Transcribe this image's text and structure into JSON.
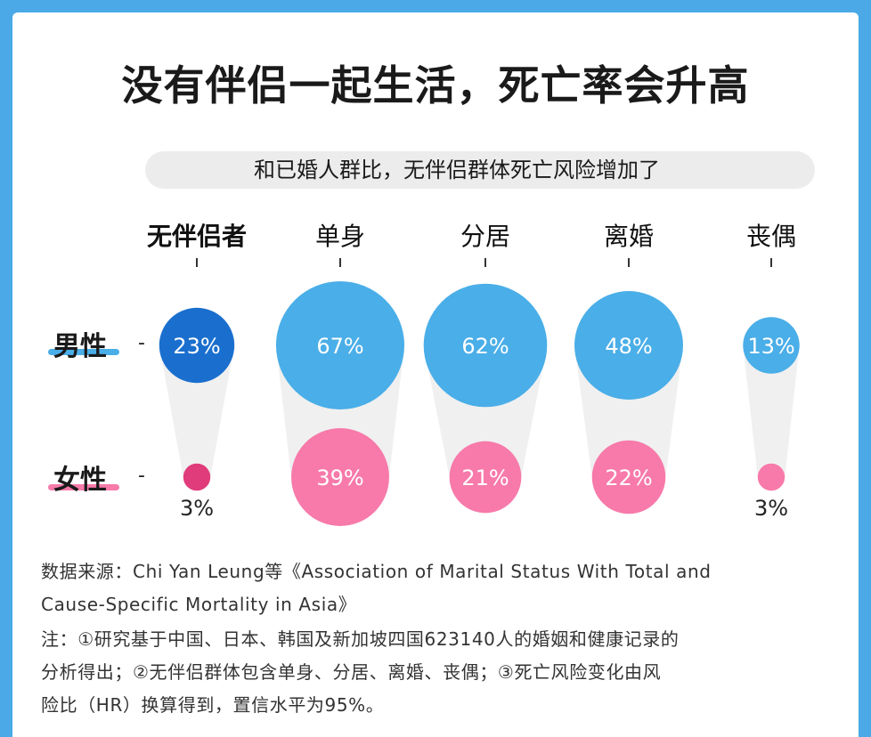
{
  "title": "没有伴侣一起生活，死亡率会升高",
  "subtitle": "和已婚人群比，无伴侣群体死亡风险增加了",
  "footnote": {
    "source_line1": "数据来源：Chi Yan Leung等《Association of Marital Status With Total and",
    "source_line2": "Cause-Specific Mortality in Asia》",
    "note_line1": "注：①研究基于中国、日本、韩国及新加坡四国623140人的婚姻和健康记录的",
    "note_line2": "分析得出；②无伴侣群体包含单身、分居、离婚、丧偶；③死亡风险变化由风",
    "note_line3": "险比（HR）换算得到，置信水平为95%。"
  },
  "rows": {
    "male": "男性",
    "female": "女性",
    "dash": "-"
  },
  "colors": {
    "background": "#4aa9e6",
    "male_total": "#1a6fce",
    "male": "#4aaee8",
    "female_total": "#e03b7a",
    "female": "#f77aaa",
    "male_underline": "#4aaee8",
    "female_underline": "#f77aaa"
  },
  "chart_data": {
    "type": "bubble",
    "categories": [
      "无伴侣者",
      "单身",
      "分居",
      "离婚",
      "丧偶"
    ],
    "series": [
      {
        "name": "男性",
        "values": [
          23,
          67,
          62,
          48,
          13
        ],
        "labels": [
          "23%",
          "67%",
          "62%",
          "48%",
          "13%"
        ]
      },
      {
        "name": "女性",
        "values": [
          3,
          39,
          21,
          22,
          3
        ],
        "labels": [
          "3%",
          "39%",
          "21%",
          "22%",
          "3%"
        ]
      }
    ]
  }
}
